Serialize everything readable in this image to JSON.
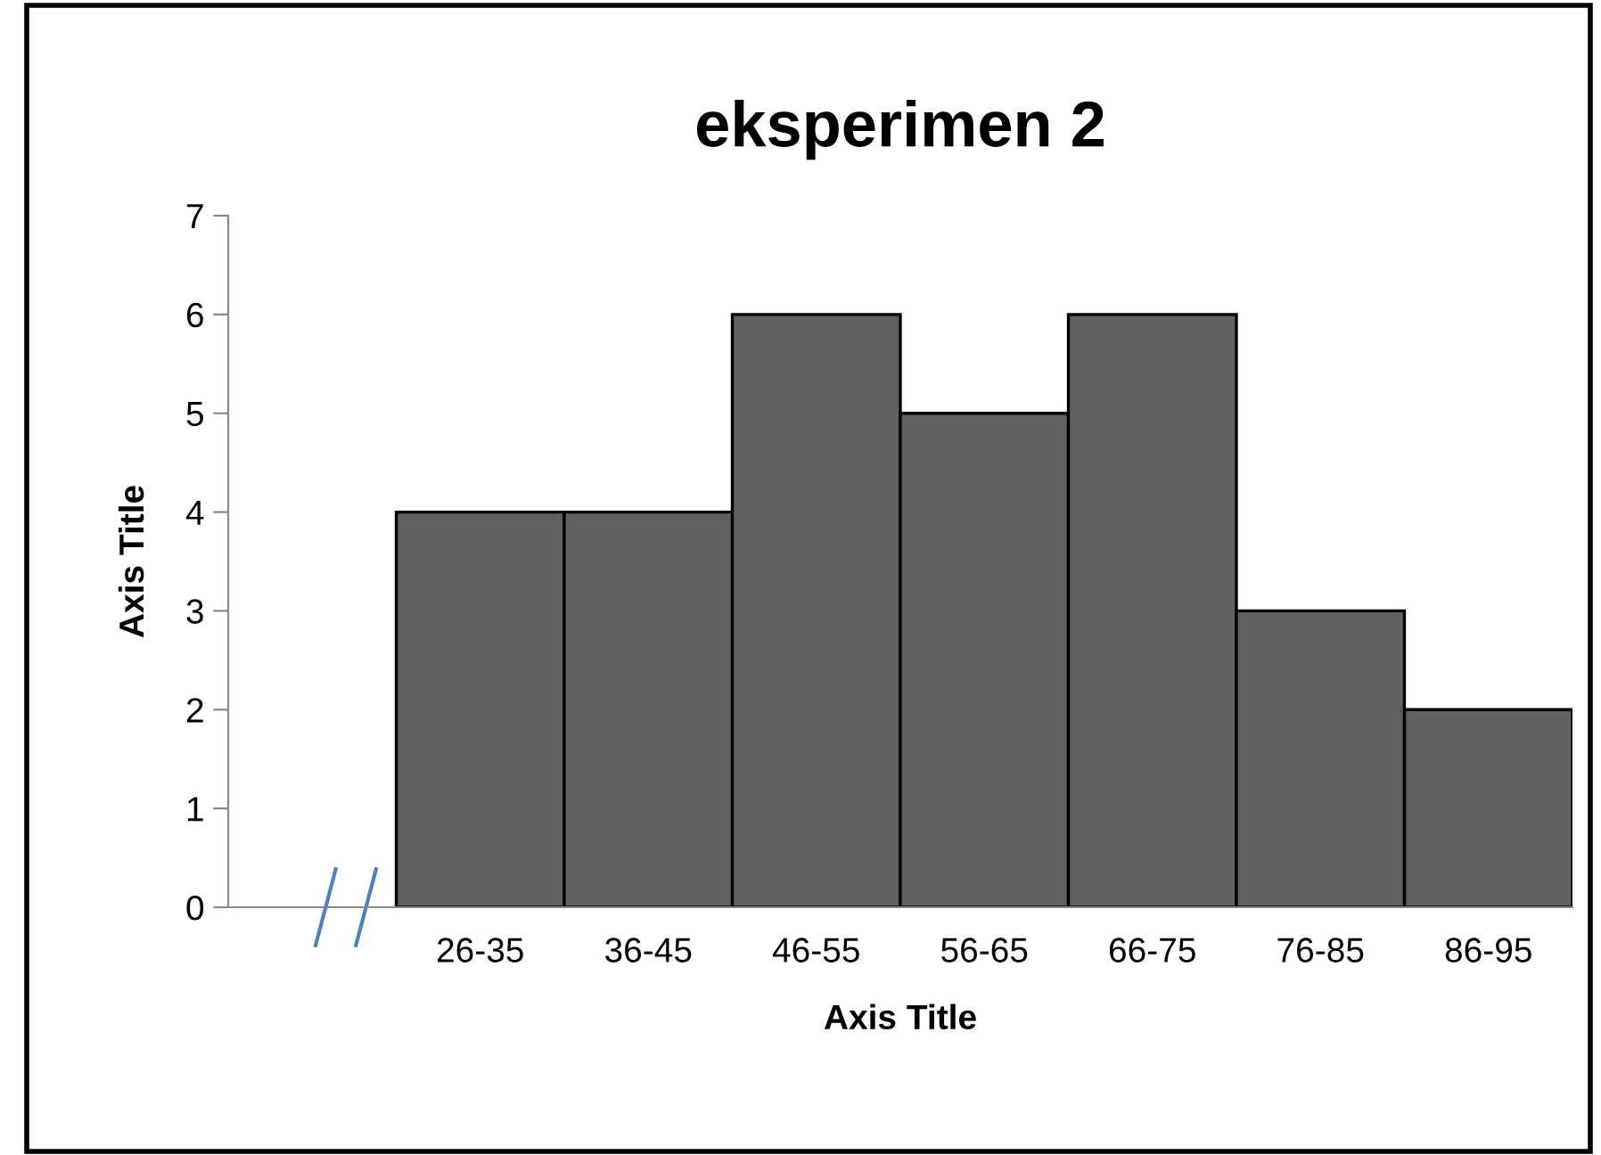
{
  "chart_data": {
    "type": "bar",
    "title": "eksperimen 2",
    "xlabel": "Axis Title",
    "ylabel": "Axis Title",
    "categories": [
      null,
      "26-35",
      "36-45",
      "46-55",
      "56-65",
      "66-75",
      "76-85",
      "86-95"
    ],
    "series": [
      {
        "color": "#606060",
        "values": [
          null,
          4,
          4,
          6,
          5,
          6,
          3,
          2
        ]
      }
    ],
    "ylim": [
      0,
      7
    ],
    "yticks": [
      0,
      1,
      2,
      3,
      4,
      5,
      6,
      7
    ],
    "grid": false,
    "legend": false
  }
}
